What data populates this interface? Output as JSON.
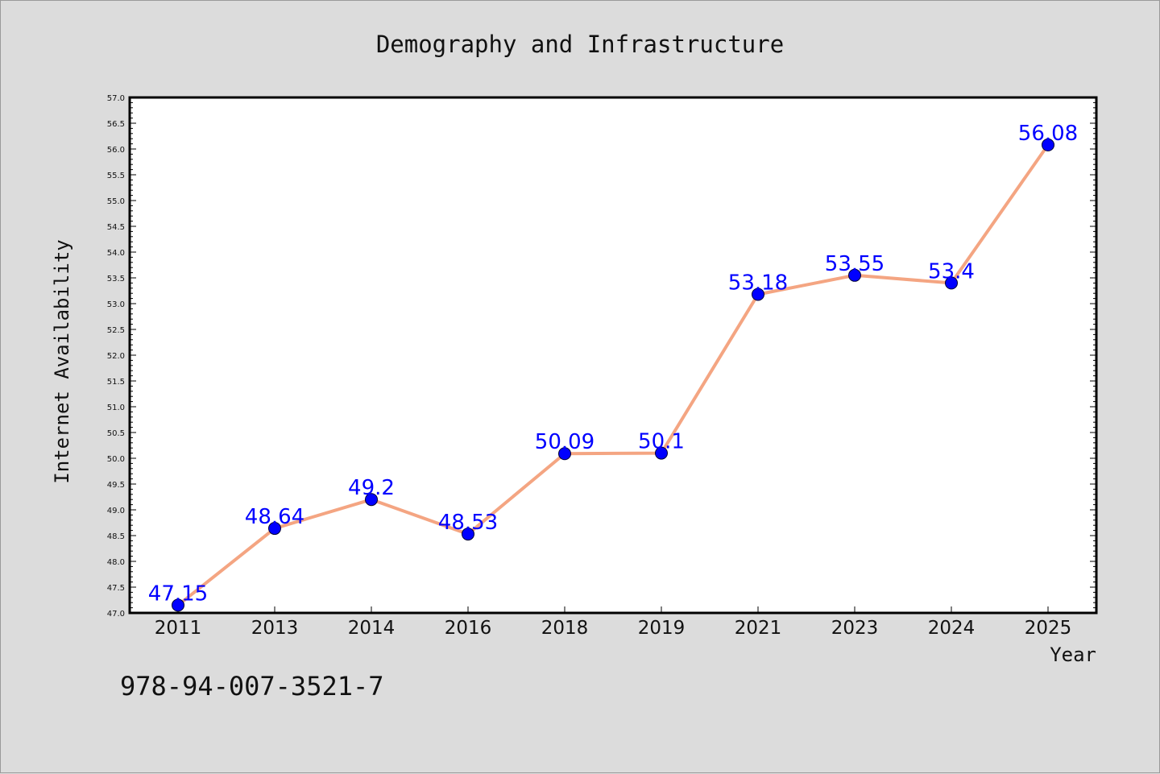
{
  "chart_data": {
    "type": "line",
    "title": "Demography and Infrastructure",
    "xlabel": "Year",
    "ylabel": "Internet Availability",
    "categories": [
      "2011",
      "2013",
      "2014",
      "2016",
      "2018",
      "2019",
      "2021",
      "2023",
      "2024",
      "2025"
    ],
    "series": [
      {
        "values": [
          47.15,
          48.64,
          49.2,
          48.53,
          50.09,
          50.1,
          53.18,
          53.55,
          53.4,
          56.08
        ],
        "labels": [
          "47.15",
          "48.64",
          "49.2",
          "48.53",
          "50.09",
          "50.1",
          "53.18",
          "53.55",
          "53.4",
          "56.08"
        ],
        "line_color": "#f4a582",
        "marker_color": "#0000ff"
      }
    ],
    "ylim": [
      47.0,
      57.0
    ],
    "yticks": [
      "47.0",
      "47.5",
      "48.0",
      "48.5",
      "49.0",
      "49.5",
      "50.0",
      "50.5",
      "51.0",
      "51.5",
      "52.0",
      "52.5",
      "53.0",
      "53.5",
      "54.0",
      "54.5",
      "55.0",
      "55.5",
      "56.0",
      "56.5",
      "57.0"
    ],
    "grid": false,
    "legend": "none"
  },
  "footer": {
    "isbn": "978-94-007-3521-7"
  },
  "colors": {
    "background": "#dcdcdc",
    "plot_background": "#ffffff",
    "line": "#f4a582",
    "marker": "#0000ff",
    "data_label": "#0000ff"
  }
}
